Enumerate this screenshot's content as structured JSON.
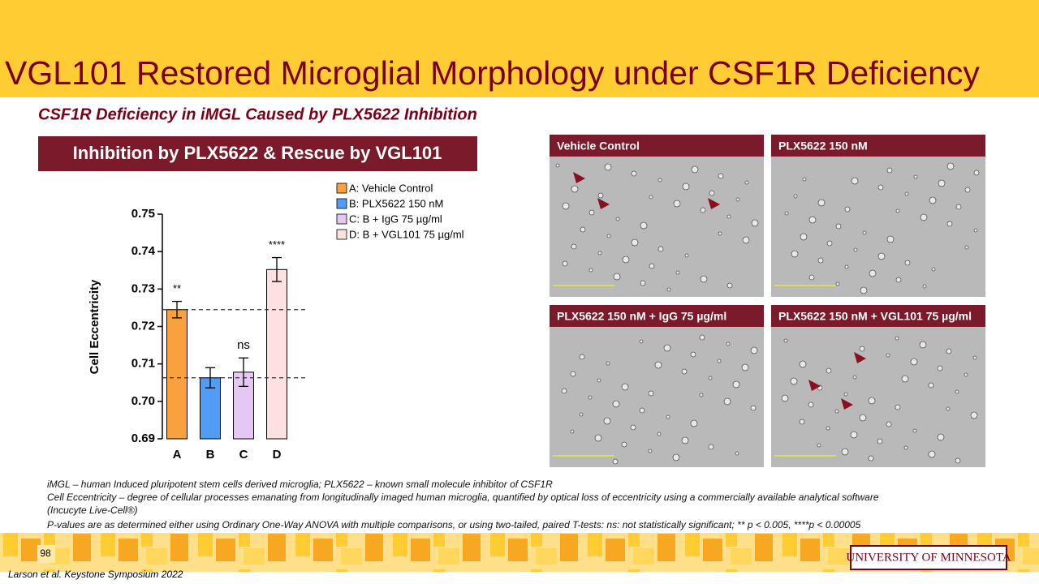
{
  "header": {
    "title": "VGL101 Restored Microglial Morphology under CSF1R Deficiency",
    "subtitle": "CSF1R Deficiency in iMGL Caused by PLX5622 Inhibition",
    "box_label": "Inhibition by PLX5622 & Rescue by VGL101"
  },
  "chart_data": {
    "type": "bar",
    "categories": [
      "A",
      "B",
      "C",
      "D"
    ],
    "values": [
      0.7245,
      0.7063,
      0.7078,
      0.7352
    ],
    "errors": [
      0.0022,
      0.0027,
      0.0038,
      0.0032
    ],
    "colors": [
      "#f9a03f",
      "#519cf5",
      "#e6c6f2",
      "#fde0e0"
    ],
    "legend": [
      "A: Vehicle Control",
      "B: PLX5622 150 nM",
      "C: B + IgG 75 µg/ml",
      "D: B + VGL101 75 µg/ml"
    ],
    "annotations": [
      "**",
      null,
      "ns",
      "****"
    ],
    "reference_lines": [
      0.7245,
      0.7063
    ],
    "ylabel": "Cell Eccentricity",
    "ylim": [
      0.69,
      0.75
    ],
    "yticks": [
      0.69,
      {
        "value": 0.7,
        "label": "0.70"
      },
      0.71,
      0.72,
      0.73,
      0.74,
      0.75
    ]
  },
  "panels": [
    {
      "label": "Vehicle Control"
    },
    {
      "label": "PLX5622 150 nM"
    },
    {
      "label": "PLX5622 150 nM + IgG 75 µg/ml"
    },
    {
      "label": "PLX5622 150 nM + VGL101 75 µg/ml"
    }
  ],
  "footnotes": [
    "iMGL – human Induced pluripotent stem cells derived microglia; PLX5622 – known small molecule inhibitor of CSF1R",
    "Cell Eccentricity – degree of cellular processes emanating from longitudinally imaged human microglia, quantified by optical loss of eccentricity using a commercially available analytical software",
    "(Incucyte Live-Cell®)",
    " P-values are as determined either using Ordinary One-Way ANOVA with multiple comparisons, or using two-tailed, paired T-tests: ns: not statistically significant; ** p < 0.005, ****p < 0.00005"
  ],
  "footer": {
    "page_number": "98",
    "citation": "Larson et al. Keystone Symposium 2022",
    "logo": "University of Minnesota"
  }
}
